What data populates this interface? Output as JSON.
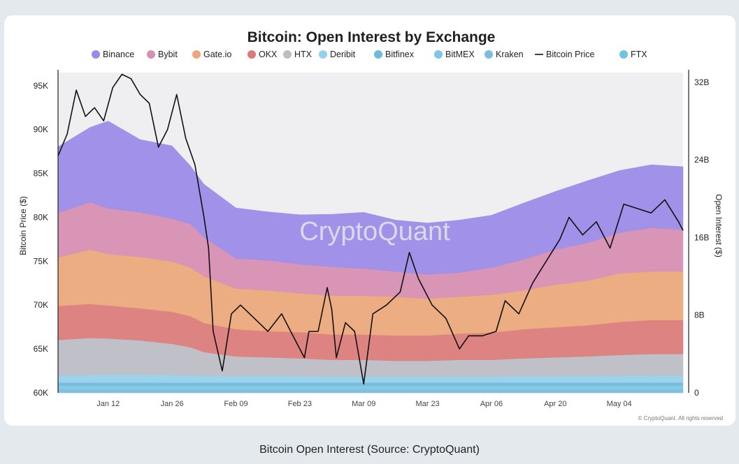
{
  "caption": "Bitcoin Open Interest (Source: CryptoQuant)",
  "chart_data": {
    "type": "area",
    "title": "Bitcoin: Open Interest by Exchange",
    "watermark": "CryptoQuant",
    "copyright": "© CryptoQuant. All rights reserved",
    "ylabel_left": "Bitcoin Price ($)",
    "ylabel_right": "Open Interest ($)",
    "yleft_ticks": [
      "60K",
      "65K",
      "70K",
      "75K",
      "80K",
      "85K",
      "90K",
      "95K"
    ],
    "yleft_tick_values": [
      60000,
      65000,
      70000,
      75000,
      80000,
      85000,
      90000,
      95000
    ],
    "yleft_range": [
      60000,
      96500
    ],
    "yright_ticks": [
      "0",
      "8B",
      "16B",
      "24B",
      "32B"
    ],
    "yright_tick_values": [
      0,
      8,
      16,
      24,
      32
    ],
    "yright_range": [
      0,
      33
    ],
    "x_range": [
      "2025-01-01",
      "2025-05-18"
    ],
    "x_ticks": [
      "Jan 12",
      "Jan 26",
      "Feb 09",
      "Feb 23",
      "Mar 09",
      "Mar 23",
      "Apr 06",
      "Apr 20",
      "May 04"
    ],
    "x_tick_dates": [
      "2025-01-12",
      "2025-01-26",
      "2025-02-09",
      "2025-02-23",
      "2025-03-09",
      "2025-03-23",
      "2025-04-06",
      "2025-04-20",
      "2025-05-04"
    ],
    "legend_position": "top-center",
    "background_note": "light grey plot area",
    "dates": [
      "2025-01-01",
      "2025-01-08",
      "2025-01-12",
      "2025-01-19",
      "2025-01-26",
      "2025-01-30",
      "2025-02-02",
      "2025-02-09",
      "2025-02-16",
      "2025-02-23",
      "2025-03-02",
      "2025-03-09",
      "2025-03-16",
      "2025-03-23",
      "2025-03-30",
      "2025-04-06",
      "2025-04-13",
      "2025-04-20",
      "2025-04-27",
      "2025-05-04",
      "2025-05-11",
      "2025-05-18"
    ],
    "series": [
      {
        "name": "FTX",
        "color": "#6fc4e0",
        "values": [
          0.05,
          0.05,
          0.05,
          0.05,
          0.05,
          0.05,
          0.05,
          0.05,
          0.05,
          0.05,
          0.05,
          0.05,
          0.05,
          0.05,
          0.05,
          0.05,
          0.05,
          0.05,
          0.05,
          0.05,
          0.05,
          0.05
        ]
      },
      {
        "name": "Kraken",
        "color": "#79bde0",
        "values": [
          0.3,
          0.3,
          0.3,
          0.3,
          0.3,
          0.3,
          0.3,
          0.3,
          0.3,
          0.3,
          0.3,
          0.3,
          0.3,
          0.3,
          0.3,
          0.3,
          0.3,
          0.3,
          0.3,
          0.3,
          0.3,
          0.3
        ]
      },
      {
        "name": "BitMEX",
        "color": "#7ec6e4",
        "values": [
          0.4,
          0.4,
          0.4,
          0.4,
          0.4,
          0.4,
          0.4,
          0.4,
          0.4,
          0.4,
          0.4,
          0.4,
          0.4,
          0.4,
          0.4,
          0.4,
          0.4,
          0.4,
          0.4,
          0.4,
          0.4,
          0.4
        ]
      },
      {
        "name": "Bitfinex",
        "color": "#6dbadc",
        "values": [
          0.3,
          0.3,
          0.3,
          0.3,
          0.3,
          0.3,
          0.3,
          0.3,
          0.3,
          0.3,
          0.3,
          0.3,
          0.3,
          0.3,
          0.3,
          0.3,
          0.3,
          0.3,
          0.3,
          0.3,
          0.3,
          0.3
        ]
      },
      {
        "name": "Deribit",
        "color": "#95d1ea",
        "values": [
          0.8,
          0.8,
          0.85,
          0.85,
          0.8,
          0.75,
          0.75,
          0.7,
          0.7,
          0.7,
          0.65,
          0.65,
          0.65,
          0.65,
          0.65,
          0.65,
          0.7,
          0.7,
          0.7,
          0.75,
          0.75,
          0.75
        ]
      },
      {
        "name": "HTX",
        "color": "#bdbdc6",
        "values": [
          3.6,
          3.8,
          3.7,
          3.5,
          3.2,
          2.9,
          2.4,
          2.0,
          1.9,
          1.8,
          1.7,
          1.7,
          1.6,
          1.6,
          1.7,
          1.7,
          1.8,
          1.9,
          2.0,
          2.1,
          2.2,
          2.2
        ]
      },
      {
        "name": "OKX",
        "color": "#dc7a78",
        "values": [
          3.5,
          3.5,
          3.4,
          3.3,
          3.3,
          3.2,
          3.0,
          2.8,
          2.7,
          2.7,
          2.6,
          2.6,
          2.6,
          2.6,
          2.7,
          2.8,
          3.0,
          3.1,
          3.2,
          3.4,
          3.5,
          3.5
        ]
      },
      {
        "name": "Gate.io",
        "color": "#eda87a",
        "values": [
          5.0,
          5.6,
          5.3,
          5.3,
          5.2,
          5.0,
          4.8,
          4.2,
          4.2,
          4.0,
          4.0,
          4.0,
          4.0,
          3.8,
          3.8,
          3.9,
          4.0,
          4.4,
          4.6,
          5.0,
          5.0,
          5.0
        ]
      },
      {
        "name": "Bybit",
        "color": "#d88eb1",
        "values": [
          4.6,
          4.9,
          4.7,
          4.6,
          4.4,
          4.5,
          4.0,
          3.1,
          3.1,
          3.0,
          3.0,
          2.8,
          2.6,
          2.5,
          2.5,
          2.8,
          3.2,
          3.6,
          3.9,
          4.2,
          4.5,
          4.3
        ]
      },
      {
        "name": "Binance",
        "color": "#9b8ae8",
        "values": [
          6.8,
          7.7,
          9.0,
          7.5,
          7.5,
          6.0,
          5.5,
          5.2,
          5.0,
          5.1,
          5.4,
          5.8,
          5.3,
          5.3,
          5.4,
          5.4,
          5.8,
          6.0,
          6.4,
          6.4,
          6.5,
          6.5
        ]
      }
    ],
    "price_series": {
      "name": "Bitcoin Price",
      "color": "#111111",
      "dates": [
        "2025-01-01",
        "2025-01-03",
        "2025-01-05",
        "2025-01-07",
        "2025-01-09",
        "2025-01-11",
        "2025-01-13",
        "2025-01-15",
        "2025-01-17",
        "2025-01-19",
        "2025-01-21",
        "2025-01-23",
        "2025-01-25",
        "2025-01-27",
        "2025-01-29",
        "2025-01-31",
        "2025-02-02",
        "2025-02-03",
        "2025-02-04",
        "2025-02-06",
        "2025-02-08",
        "2025-02-10",
        "2025-02-13",
        "2025-02-16",
        "2025-02-19",
        "2025-02-22",
        "2025-02-24",
        "2025-02-25",
        "2025-02-27",
        "2025-03-01",
        "2025-03-02",
        "2025-03-03",
        "2025-03-05",
        "2025-03-07",
        "2025-03-09",
        "2025-03-11",
        "2025-03-14",
        "2025-03-17",
        "2025-03-19",
        "2025-03-21",
        "2025-03-24",
        "2025-03-27",
        "2025-03-30",
        "2025-04-01",
        "2025-04-04",
        "2025-04-07",
        "2025-04-09",
        "2025-04-12",
        "2025-04-15",
        "2025-04-18",
        "2025-04-21",
        "2025-04-23",
        "2025-04-26",
        "2025-04-29",
        "2025-05-02",
        "2025-05-05",
        "2025-05-08",
        "2025-05-11",
        "2025-05-14",
        "2025-05-17",
        "2025-05-18"
      ],
      "values": [
        87000,
        89500,
        94500,
        91500,
        92500,
        91000,
        94800,
        96300,
        95800,
        94000,
        93000,
        88000,
        90000,
        94000,
        89000,
        86000,
        80000,
        76500,
        67000,
        62500,
        69000,
        70000,
        68500,
        67000,
        69000,
        66000,
        64000,
        67000,
        67000,
        72000,
        69500,
        64000,
        68000,
        67000,
        61000,
        69000,
        70000,
        71500,
        76000,
        73000,
        70000,
        68500,
        65000,
        66500,
        66500,
        67000,
        70500,
        69000,
        72500,
        75000,
        77500,
        80000,
        78000,
        79500,
        76500,
        81500,
        81000,
        80500,
        82000,
        79500,
        78500
      ]
    }
  }
}
